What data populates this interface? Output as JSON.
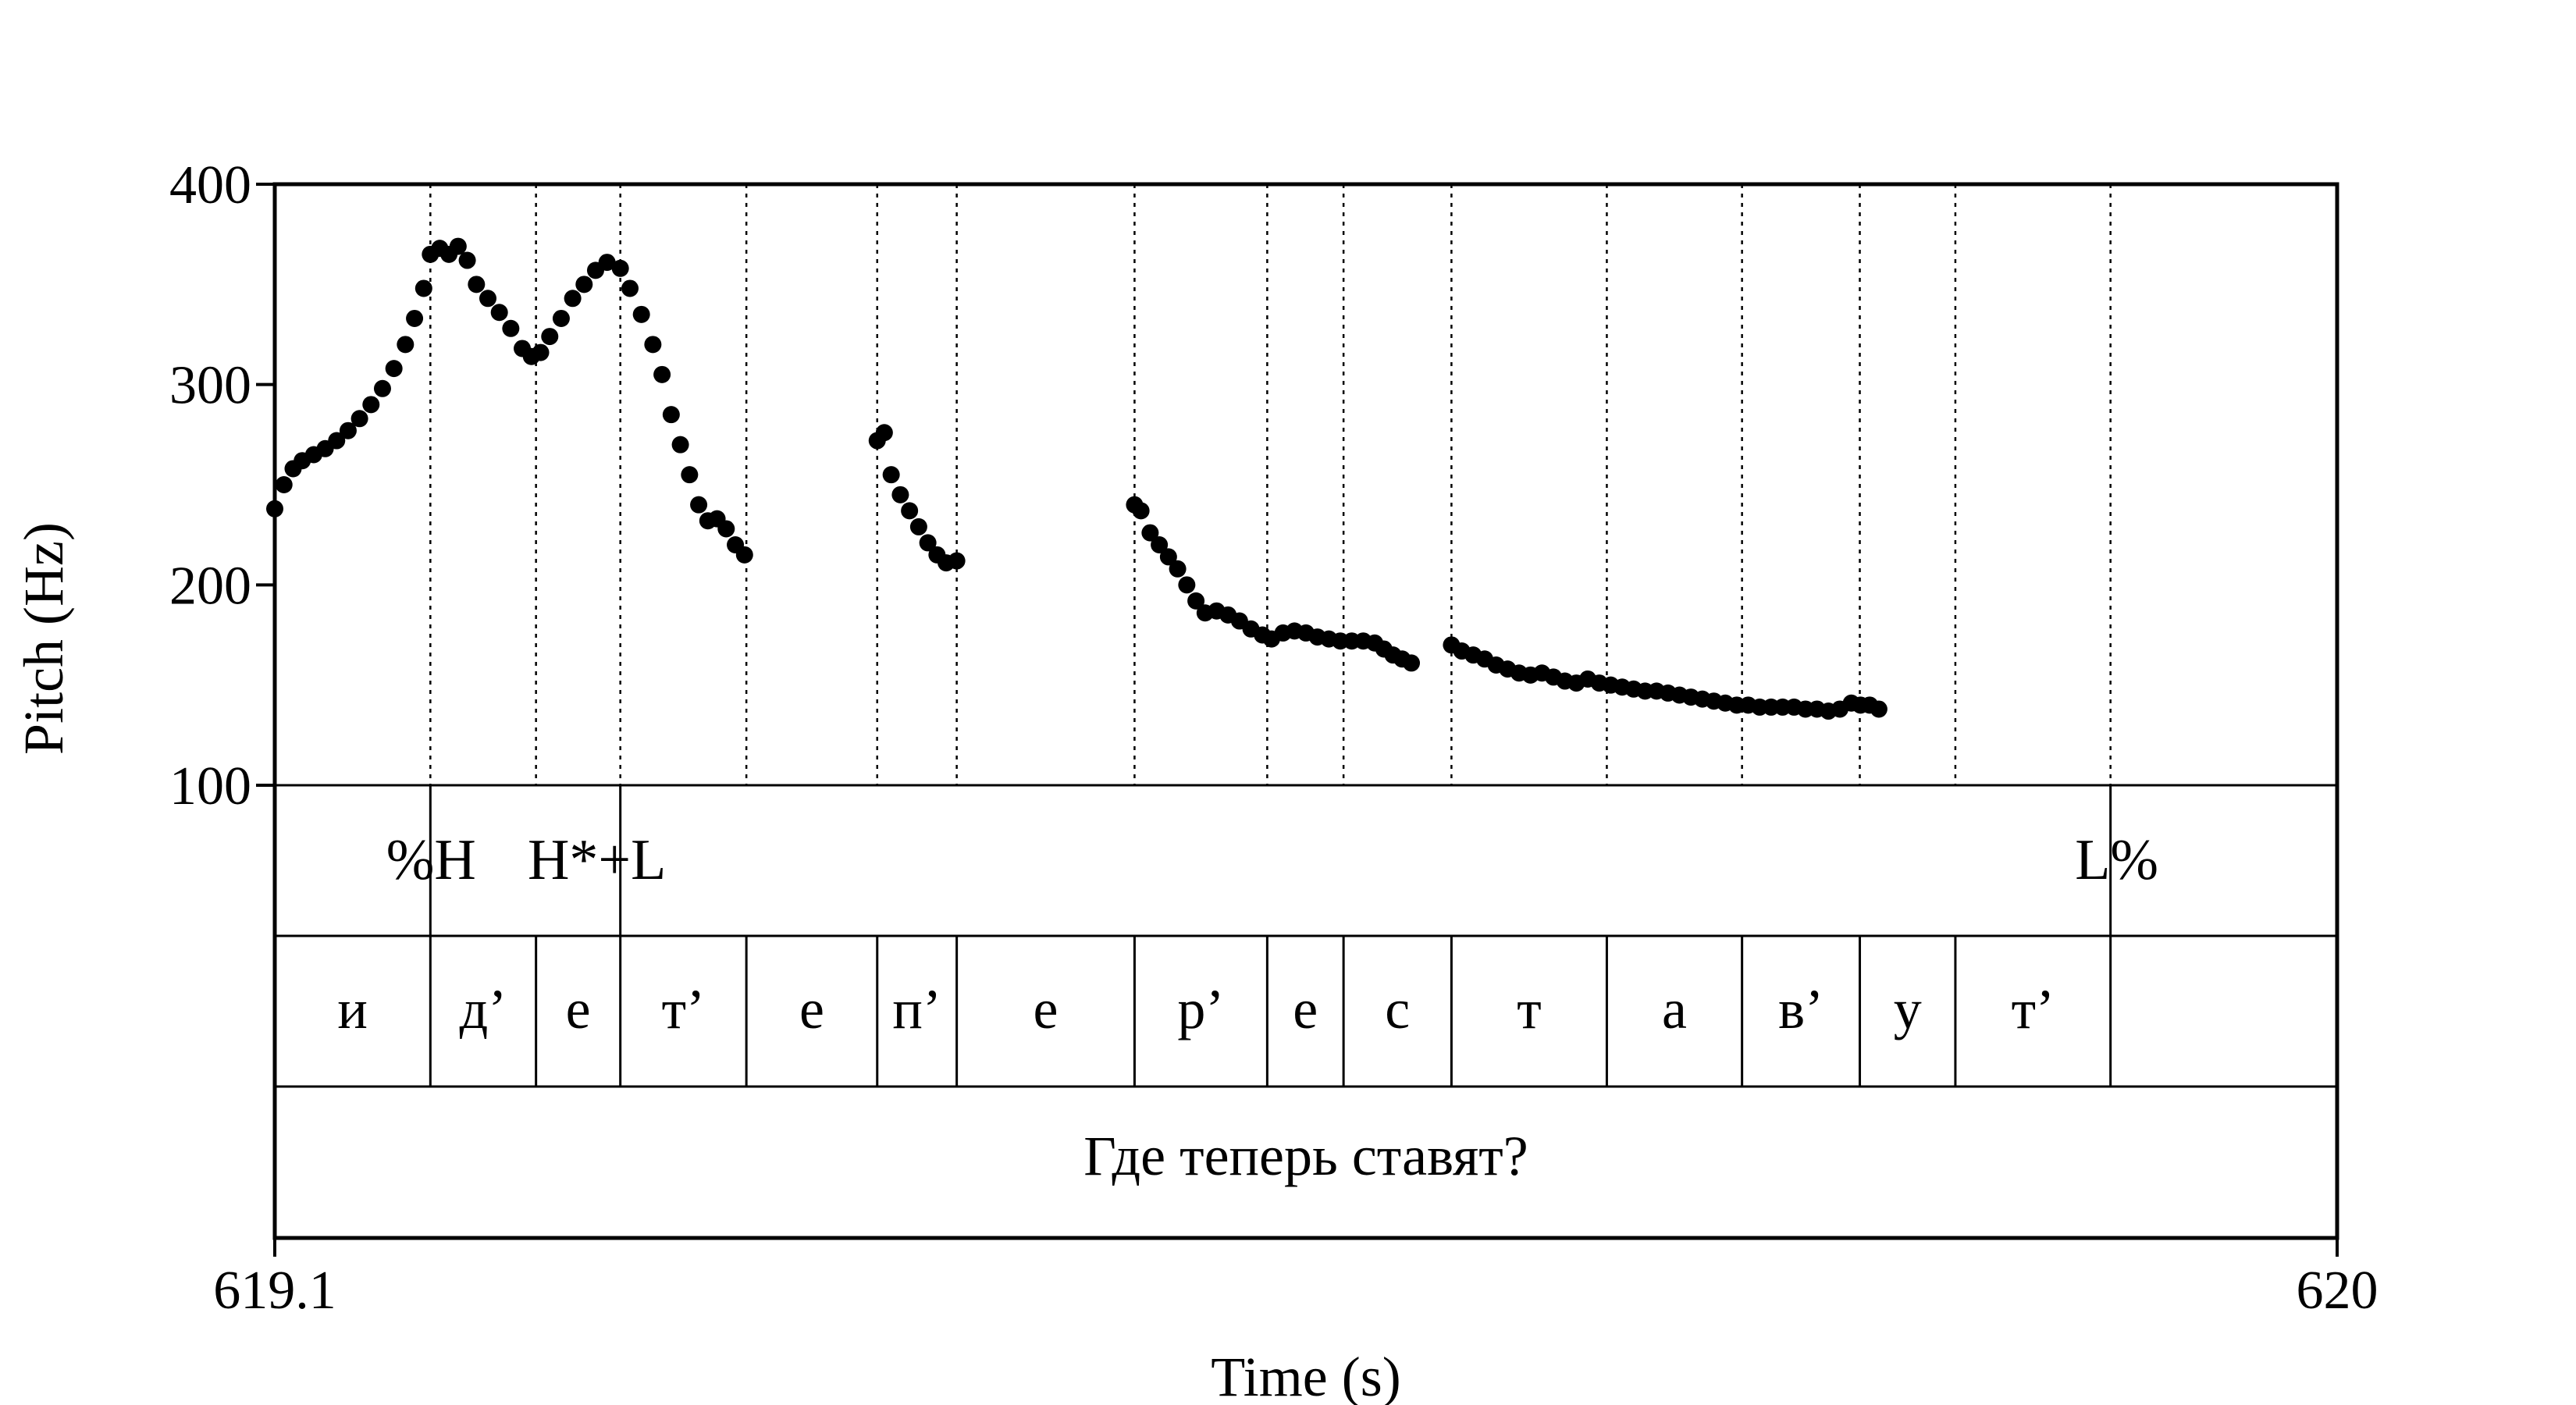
{
  "chart_data": {
    "type": "scatter",
    "ylabel": "Pitch (Hz)",
    "xlabel": "Time (s)",
    "ylim": [
      100,
      400
    ],
    "yticks": [
      100,
      200,
      300,
      400
    ],
    "xlim": [
      619.1,
      620
    ],
    "xtick_labels": [
      "619.1",
      "620"
    ],
    "marker_color": "#000000",
    "grid": "dotted vertical lines at segment boundaries",
    "tones": [
      {
        "label": "%H",
        "t": 619.1679
      },
      {
        "label": "H*+L",
        "t": 619.2508
      }
    ],
    "boundary_tone": {
      "label": "L%",
      "t": 619.9011
    },
    "segment_boundaries": [
      619.1679,
      619.214,
      619.2508,
      619.3058,
      619.3629,
      619.3976,
      619.4752,
      619.5331,
      619.5664,
      619.6135,
      619.6813,
      619.7403,
      619.7917,
      619.8334,
      619.9011
    ],
    "segments": [
      "и",
      "д’",
      "е",
      "т’",
      "е",
      "п’",
      "е",
      "р’",
      "е",
      "с",
      "т",
      "а",
      "в’",
      "у",
      "т’"
    ],
    "sentence": "Где теперь ставят?",
    "pitch_contours": [
      {
        "points": [
          [
            619.1,
            238
          ],
          [
            619.104,
            250
          ],
          [
            619.108,
            258
          ],
          [
            619.112,
            262
          ],
          [
            619.117,
            265
          ],
          [
            619.122,
            268
          ],
          [
            619.127,
            272
          ],
          [
            619.132,
            277
          ],
          [
            619.137,
            283
          ],
          [
            619.142,
            290
          ],
          [
            619.147,
            298
          ],
          [
            619.152,
            308
          ],
          [
            619.157,
            320
          ],
          [
            619.161,
            333
          ],
          [
            619.165,
            348
          ],
          [
            619.1679,
            365
          ],
          [
            619.172,
            368
          ],
          [
            619.176,
            365
          ],
          [
            619.18,
            369
          ],
          [
            619.184,
            362
          ],
          [
            619.188,
            350
          ],
          [
            619.193,
            343
          ],
          [
            619.198,
            336
          ],
          [
            619.203,
            328
          ],
          [
            619.208,
            318
          ],
          [
            619.212,
            314
          ],
          [
            619.216,
            316
          ],
          [
            619.22,
            324
          ],
          [
            619.225,
            333
          ],
          [
            619.23,
            343
          ],
          [
            619.235,
            350
          ],
          [
            619.24,
            357
          ],
          [
            619.245,
            361
          ],
          [
            619.2508,
            358
          ],
          [
            619.255,
            348
          ],
          [
            619.26,
            335
          ],
          [
            619.265,
            320
          ],
          [
            619.269,
            305
          ],
          [
            619.273,
            285
          ],
          [
            619.277,
            270
          ],
          [
            619.281,
            255
          ],
          [
            619.285,
            240
          ],
          [
            619.289,
            232
          ],
          [
            619.293,
            233
          ],
          [
            619.297,
            228
          ],
          [
            619.301,
            220
          ],
          [
            619.305,
            215
          ]
        ]
      },
      {
        "points": [
          [
            619.3629,
            272
          ],
          [
            619.366,
            276
          ],
          [
            619.369,
            255
          ],
          [
            619.373,
            245
          ],
          [
            619.377,
            237
          ],
          [
            619.381,
            229
          ],
          [
            619.385,
            221
          ],
          [
            619.389,
            215
          ],
          [
            619.393,
            211
          ],
          [
            619.3976,
            212
          ]
        ]
      },
      {
        "points": [
          [
            619.4752,
            240
          ],
          [
            619.478,
            237
          ],
          [
            619.482,
            226
          ],
          [
            619.486,
            220
          ],
          [
            619.49,
            214
          ],
          [
            619.494,
            208
          ],
          [
            619.498,
            200
          ],
          [
            619.502,
            192
          ],
          [
            619.506,
            186
          ],
          [
            619.511,
            187
          ],
          [
            619.516,
            185
          ],
          [
            619.521,
            182
          ],
          [
            619.526,
            178
          ],
          [
            619.531,
            175
          ],
          [
            619.535,
            173
          ],
          [
            619.54,
            176
          ],
          [
            619.545,
            177
          ],
          [
            619.55,
            176
          ],
          [
            619.555,
            174
          ],
          [
            619.56,
            173
          ],
          [
            619.565,
            172
          ],
          [
            619.57,
            172
          ],
          [
            619.575,
            172
          ],
          [
            619.58,
            171
          ],
          [
            619.584,
            168
          ],
          [
            619.588,
            165
          ],
          [
            619.592,
            163
          ],
          [
            619.596,
            161
          ]
        ]
      },
      {
        "points": [
          [
            619.6135,
            170
          ],
          [
            619.618,
            167
          ],
          [
            619.623,
            165
          ],
          [
            619.628,
            163
          ],
          [
            619.633,
            160
          ],
          [
            619.638,
            158
          ],
          [
            619.643,
            156
          ],
          [
            619.648,
            155
          ],
          [
            619.653,
            156
          ],
          [
            619.658,
            154
          ],
          [
            619.663,
            152
          ],
          [
            619.668,
            151
          ],
          [
            619.673,
            153
          ],
          [
            619.678,
            151
          ],
          [
            619.683,
            150
          ],
          [
            619.688,
            149
          ],
          [
            619.693,
            148
          ],
          [
            619.698,
            147
          ],
          [
            619.703,
            147
          ],
          [
            619.708,
            146
          ],
          [
            619.713,
            145
          ],
          [
            619.718,
            144
          ],
          [
            619.723,
            143
          ],
          [
            619.728,
            142
          ],
          [
            619.733,
            141
          ],
          [
            619.738,
            140
          ],
          [
            619.743,
            140
          ],
          [
            619.748,
            139
          ],
          [
            619.753,
            139
          ],
          [
            619.758,
            139
          ],
          [
            619.763,
            139
          ],
          [
            619.768,
            138
          ],
          [
            619.773,
            138
          ],
          [
            619.778,
            137
          ],
          [
            619.783,
            138
          ],
          [
            619.788,
            141
          ],
          [
            619.792,
            140
          ],
          [
            619.796,
            140
          ],
          [
            619.8,
            138
          ]
        ]
      }
    ]
  }
}
